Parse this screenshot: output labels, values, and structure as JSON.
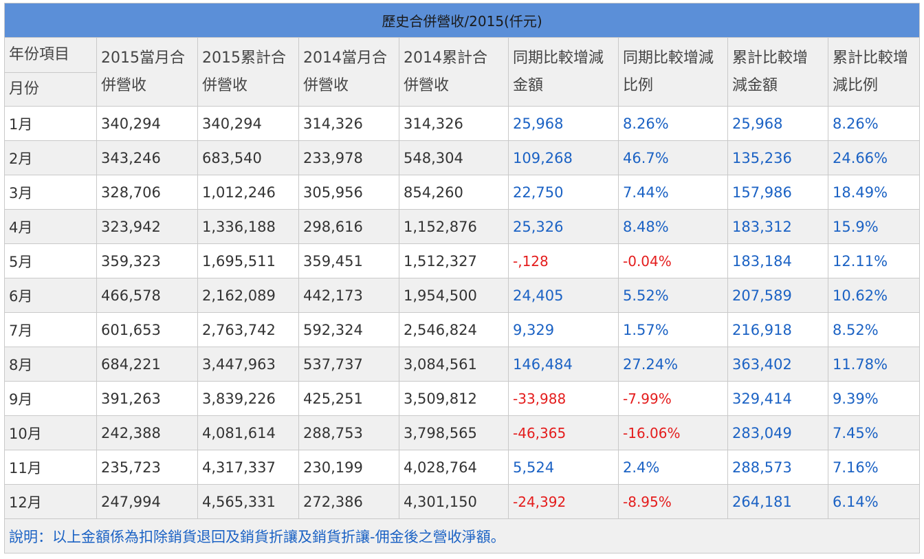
{
  "title": "歷史合併營收/2015(仟元)",
  "header": {
    "year_label": "年份項目",
    "month_label": "月份",
    "columns": [
      [
        "2015當月合",
        "併營收"
      ],
      [
        "2015累計合",
        "併營收"
      ],
      [
        "2014當月合",
        "併營收"
      ],
      [
        "2014累計合",
        "併營收"
      ],
      [
        "同期比較增減",
        "金額"
      ],
      [
        "同期比較增減",
        "比例"
      ],
      [
        "累計比較增",
        "減金額"
      ],
      [
        "累計比較增",
        "減比例"
      ]
    ]
  },
  "rows": [
    {
      "month": "1月",
      "c2015": "340,294",
      "cum2015": "340,294",
      "c2014": "314,326",
      "cum2014": "314,326",
      "diff": "25,968",
      "diff_pct": "8.26%",
      "cum_diff": "25,968",
      "cum_diff_pct": "8.26%"
    },
    {
      "month": "2月",
      "c2015": "343,246",
      "cum2015": "683,540",
      "c2014": "233,978",
      "cum2014": "548,304",
      "diff": "109,268",
      "diff_pct": "46.7%",
      "cum_diff": "135,236",
      "cum_diff_pct": "24.66%"
    },
    {
      "month": "3月",
      "c2015": "328,706",
      "cum2015": "1,012,246",
      "c2014": "305,956",
      "cum2014": "854,260",
      "diff": "22,750",
      "diff_pct": "7.44%",
      "cum_diff": "157,986",
      "cum_diff_pct": "18.49%"
    },
    {
      "month": "4月",
      "c2015": "323,942",
      "cum2015": "1,336,188",
      "c2014": "298,616",
      "cum2014": "1,152,876",
      "diff": "25,326",
      "diff_pct": "8.48%",
      "cum_diff": "183,312",
      "cum_diff_pct": "15.9%"
    },
    {
      "month": "5月",
      "c2015": "359,323",
      "cum2015": "1,695,511",
      "c2014": "359,451",
      "cum2014": "1,512,327",
      "diff": "-,128",
      "diff_pct": "-0.04%",
      "cum_diff": "183,184",
      "cum_diff_pct": "12.11%"
    },
    {
      "month": "6月",
      "c2015": "466,578",
      "cum2015": "2,162,089",
      "c2014": "442,173",
      "cum2014": "1,954,500",
      "diff": "24,405",
      "diff_pct": "5.52%",
      "cum_diff": "207,589",
      "cum_diff_pct": "10.62%"
    },
    {
      "month": "7月",
      "c2015": "601,653",
      "cum2015": "2,763,742",
      "c2014": "592,324",
      "cum2014": "2,546,824",
      "diff": "9,329",
      "diff_pct": "1.57%",
      "cum_diff": "216,918",
      "cum_diff_pct": "8.52%"
    },
    {
      "month": "8月",
      "c2015": "684,221",
      "cum2015": "3,447,963",
      "c2014": "537,737",
      "cum2014": "3,084,561",
      "diff": "146,484",
      "diff_pct": "27.24%",
      "cum_diff": "363,402",
      "cum_diff_pct": "11.78%"
    },
    {
      "month": "9月",
      "c2015": "391,263",
      "cum2015": "3,839,226",
      "c2014": "425,251",
      "cum2014": "3,509,812",
      "diff": "-33,988",
      "diff_pct": "-7.99%",
      "cum_diff": "329,414",
      "cum_diff_pct": "9.39%"
    },
    {
      "month": "10月",
      "c2015": "242,388",
      "cum2015": "4,081,614",
      "c2014": "288,753",
      "cum2014": "3,798,565",
      "diff": "-46,365",
      "diff_pct": "-16.06%",
      "cum_diff": "283,049",
      "cum_diff_pct": "7.45%"
    },
    {
      "month": "11月",
      "c2015": "235,723",
      "cum2015": "4,317,337",
      "c2014": "230,199",
      "cum2014": "4,028,764",
      "diff": "5,524",
      "diff_pct": "2.4%",
      "cum_diff": "288,573",
      "cum_diff_pct": "7.16%"
    },
    {
      "month": "12月",
      "c2015": "247,994",
      "cum2015": "4,565,331",
      "c2014": "272,386",
      "cum2014": "4,301,150",
      "diff": "-24,392",
      "diff_pct": "-8.95%",
      "cum_diff": "264,181",
      "cum_diff_pct": "6.14%"
    }
  ],
  "note": "說明：以上金額係為扣除銷貨退回及銷貨折讓及銷貨折讓-佣金後之營收淨額。",
  "colors": {
    "title_bg": "#5b8fd8",
    "positive": "#1b62c4",
    "negative": "#e41c1c",
    "stripe": "#f0f0f0"
  }
}
